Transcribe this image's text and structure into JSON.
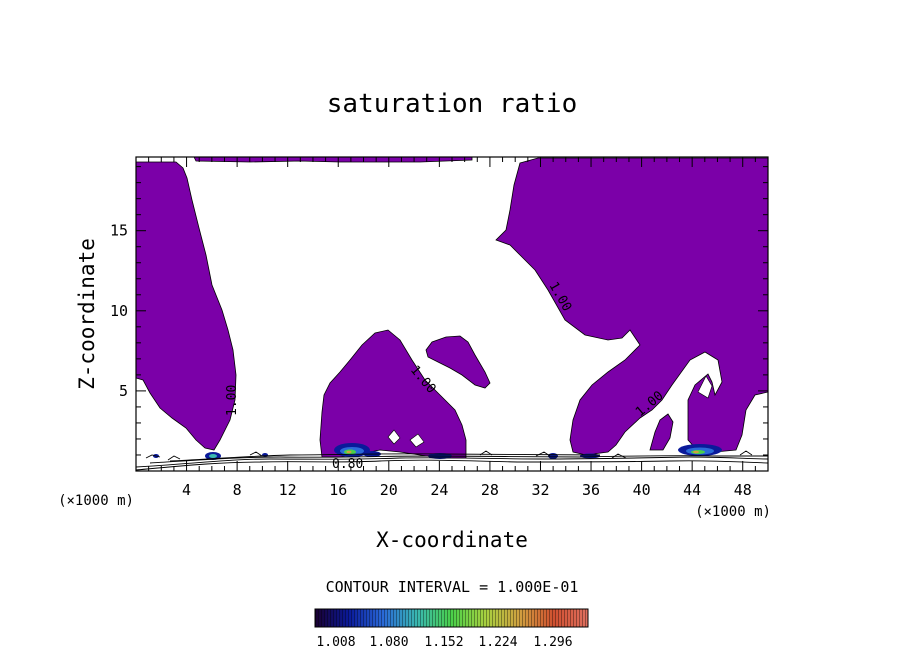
{
  "chart_data": {
    "type": "contour",
    "title": "saturation ratio",
    "xlabel": "X-coordinate",
    "ylabel": "Z-coordinate",
    "x_unit": "(×1000 m)",
    "y_unit": "(×1000 m)",
    "xlim": [
      0,
      50
    ],
    "ylim": [
      0,
      19.6
    ],
    "xticks": [
      4,
      8,
      12,
      16,
      20,
      24,
      28,
      32,
      36,
      40,
      44,
      48
    ],
    "yticks": [
      5,
      10,
      15
    ],
    "contour_interval_text": "CONTOUR INTERVAL = 1.000E-01",
    "contour_labels": [
      "1.00",
      "1.00",
      "1.00",
      "1.00",
      "0.80"
    ],
    "fill_color": "#7b00a8",
    "colorbar": {
      "tick_labels": [
        "1.008",
        "1.080",
        "1.152",
        "1.224",
        "1.296"
      ],
      "stops": [
        "#1a0030",
        "#0a1a9a",
        "#2a6ad8",
        "#3ab8b0",
        "#4ad04a",
        "#a8d040",
        "#d0a040",
        "#d05030",
        "#e07060"
      ]
    }
  }
}
